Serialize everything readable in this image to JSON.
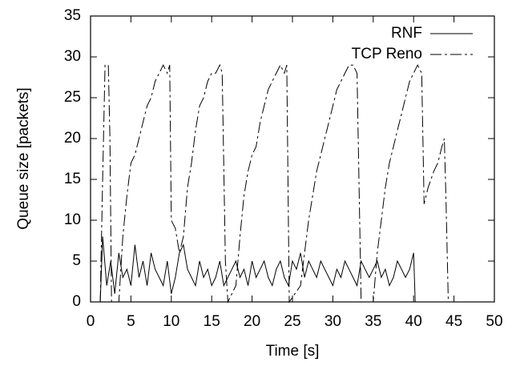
{
  "chart_data": {
    "type": "line",
    "xlabel": "Time [s]",
    "ylabel": "Queue size [packets]",
    "xlim": [
      0,
      50
    ],
    "xticks": [
      0,
      5,
      10,
      15,
      20,
      25,
      30,
      35,
      40,
      45,
      50
    ],
    "ylim": [
      0,
      35
    ],
    "yticks": [
      0,
      5,
      10,
      15,
      20,
      25,
      30,
      35
    ],
    "grid": false,
    "legend": "upper right",
    "series": [
      {
        "name": "RNF",
        "color": "#000000",
        "dash": "solid",
        "x": [
          1.2,
          1.5,
          2,
          2.5,
          3,
          3.5,
          4,
          4.5,
          5,
          5.5,
          6,
          6.5,
          7,
          7.5,
          8,
          8.5,
          9,
          9.5,
          10,
          10.5,
          11,
          11.5,
          12,
          12.5,
          13,
          13.5,
          14,
          14.5,
          15,
          15.5,
          16,
          16.5,
          17,
          17.5,
          18,
          18.5,
          19,
          19.5,
          20,
          20.5,
          21,
          21.5,
          22,
          22.5,
          23,
          23.5,
          24,
          24.5,
          25,
          25.5,
          26,
          26.5,
          27,
          27.5,
          28,
          28.5,
          29,
          29.5,
          30,
          30.5,
          31,
          31.5,
          32,
          32.5,
          33,
          33.5,
          34,
          34.5,
          35,
          35.5,
          36,
          36.5,
          37,
          37.5,
          38,
          38.5,
          39,
          39.5,
          40,
          40.2
        ],
        "values": [
          0,
          8,
          2,
          5,
          1,
          6,
          3,
          4,
          2,
          7,
          3,
          5,
          2,
          6,
          4,
          3,
          2,
          5,
          1,
          3,
          6,
          7,
          4,
          3,
          2,
          5,
          3,
          4,
          2,
          3,
          5,
          2,
          3,
          4,
          5,
          3,
          4,
          2,
          5,
          3,
          4,
          5,
          3,
          2,
          4,
          5,
          3,
          2,
          5,
          4,
          6,
          3,
          5,
          4,
          3,
          5,
          4,
          3,
          2,
          4,
          3,
          5,
          4,
          3,
          2,
          5,
          4,
          3,
          4,
          5,
          3,
          4,
          2,
          3,
          5,
          4,
          3,
          4,
          6,
          0
        ]
      },
      {
        "name": "TCP Reno",
        "color": "#000000",
        "dash": "dashed",
        "x": [
          1.2,
          1.5,
          1.8,
          2.2,
          2.4,
          2.6,
          3.5,
          4.0,
          4.5,
          5.0,
          5.5,
          6.0,
          6.5,
          7.0,
          7.5,
          8.0,
          8.5,
          9.0,
          9.5,
          9.8,
          10.0,
          10.5,
          11.0,
          11.5,
          12.0,
          12.5,
          13.0,
          13.5,
          14.0,
          14.5,
          15.0,
          15.5,
          16.0,
          16.3,
          16.7,
          17.0,
          18.0,
          18.5,
          19.0,
          19.5,
          20.0,
          20.5,
          21.0,
          21.5,
          22.0,
          22.5,
          23.0,
          23.5,
          24.0,
          24.3,
          24.6,
          26.0,
          26.5,
          27.0,
          27.5,
          28.0,
          28.5,
          29.0,
          29.5,
          30.0,
          30.5,
          31.0,
          31.5,
          32.0,
          32.5,
          33.0,
          33.5,
          35.0,
          35.5,
          36.0,
          36.5,
          37.0,
          37.5,
          38.0,
          38.5,
          39.0,
          39.5,
          40.0,
          40.5,
          41.0,
          41.3,
          41.8,
          42.5,
          43.0,
          43.5,
          43.8,
          44.0,
          44.3
        ],
        "values": [
          0,
          15,
          29,
          29,
          20,
          0,
          0,
          8,
          13,
          17,
          18,
          20,
          22,
          24,
          25,
          27,
          28,
          29,
          28,
          29,
          10,
          9,
          6,
          8,
          14,
          17,
          21,
          24,
          25,
          27,
          28,
          28,
          29,
          28,
          5,
          0,
          2,
          8,
          13,
          16,
          18,
          19,
          22,
          24,
          26,
          27,
          28,
          29,
          28,
          29,
          0,
          2,
          6,
          10,
          13,
          16,
          18,
          20,
          22,
          24,
          26,
          27,
          28,
          29,
          29,
          28,
          0,
          0,
          6,
          10,
          14,
          17,
          19,
          21,
          23,
          25,
          27,
          28,
          29,
          28,
          12,
          14,
          16,
          17,
          19,
          20,
          13,
          0
        ]
      }
    ]
  }
}
